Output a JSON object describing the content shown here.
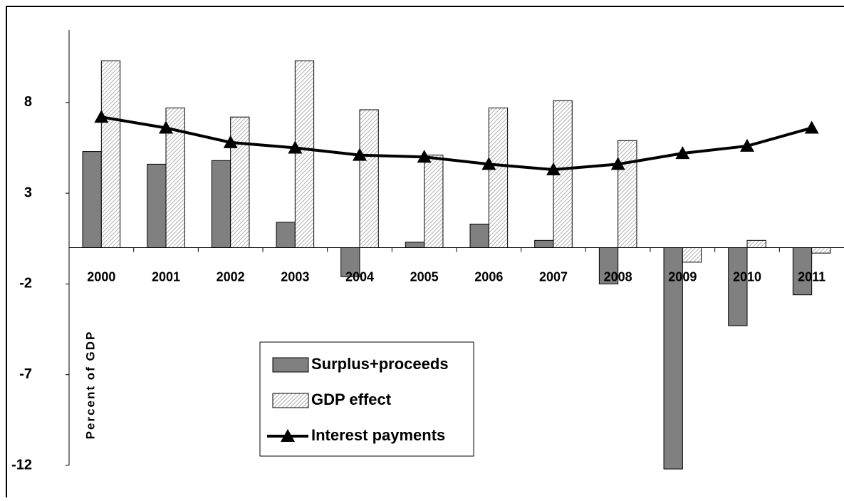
{
  "chart_data": {
    "type": "bar-line",
    "y_label": "Percent of GDP",
    "categories": [
      "2000",
      "2001",
      "2002",
      "2003",
      "2004",
      "2005",
      "2006",
      "2007",
      "2008",
      "2009",
      "2010",
      "2011"
    ],
    "series": [
      {
        "name": "Surplus+proceeds",
        "type": "bar",
        "color": "#808080",
        "values": [
          5.3,
          4.6,
          4.8,
          1.4,
          -1.6,
          0.3,
          1.3,
          0.4,
          -2.0,
          -12.2,
          -4.3,
          -2.6
        ]
      },
      {
        "name": "GDP effect",
        "type": "bar",
        "color": "#9a9a9a",
        "hatched": true,
        "values": [
          10.3,
          7.7,
          7.2,
          10.3,
          7.6,
          5.1,
          7.7,
          8.1,
          5.9,
          -0.8,
          0.4,
          -0.3
        ]
      },
      {
        "name": "Interest payments",
        "type": "line",
        "color": "#000000",
        "values": [
          7.2,
          6.6,
          5.8,
          5.5,
          5.1,
          5.0,
          4.6,
          4.3,
          4.6,
          5.2,
          5.6,
          6.6
        ]
      }
    ],
    "ylim": [
      -12,
      12
    ],
    "yticks": [
      -12,
      -7,
      -2,
      3,
      8
    ],
    "grid": false
  }
}
